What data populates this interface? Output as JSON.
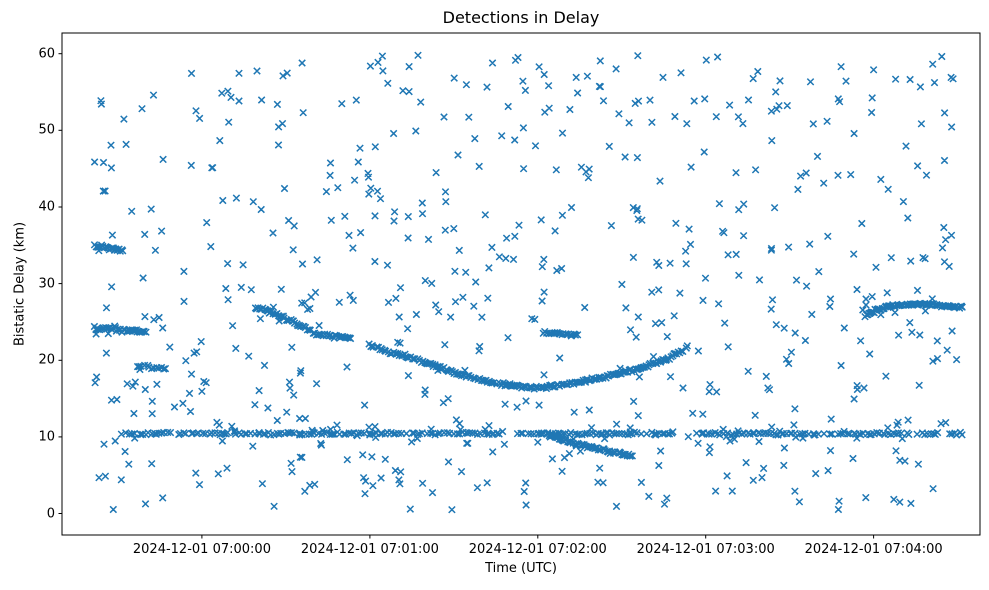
{
  "window": {
    "kind": "matplotlib-figure"
  },
  "chart_data": {
    "type": "scatter",
    "title": "Detections in Delay",
    "xlabel": "Time (UTC)",
    "ylabel": "Bistatic Delay (km)",
    "marker": "x",
    "marker_color": "#1f77b4",
    "marker_half_size_px": 3.2,
    "marker_stroke_px": 1.5,
    "x_axis": {
      "tick_seconds": [
        0,
        60,
        120,
        180,
        240
      ],
      "tick_labels": [
        "2024-12-01 07:00:00",
        "2024-12-01 07:01:00",
        "2024-12-01 07:02:00",
        "2024-12-01 07:03:00",
        "2024-12-01 07:04:00"
      ],
      "xlim_seconds": [
        -50,
        278
      ]
    },
    "y_axis": {
      "ticks": [
        0,
        10,
        20,
        30,
        40,
        50,
        60
      ],
      "tick_labels": [
        "0",
        "10",
        "20",
        "30",
        "40",
        "50",
        "60"
      ],
      "ylim": [
        -2.8,
        62.7
      ]
    },
    "grid": false,
    "legend": null,
    "tracks": [
      {
        "name": "track-34.5km",
        "polyline": [
          [
            -38.5,
            35.0
          ],
          [
            -28.0,
            34.3
          ]
        ],
        "step": 0.45,
        "jitter": 0.14,
        "gap_probability": 0.05,
        "gaps": []
      },
      {
        "name": "track-24km",
        "polyline": [
          [
            -38.5,
            24.2
          ],
          [
            -20.0,
            23.7
          ]
        ],
        "step": 0.5,
        "jitter": 0.15,
        "gap_probability": 0.05,
        "gaps": []
      },
      {
        "name": "track-19km",
        "polyline": [
          [
            -23.0,
            19.3
          ],
          [
            -13.0,
            18.8
          ]
        ],
        "step": 0.7,
        "jitter": 0.15,
        "gap_probability": 0.05,
        "gaps": []
      },
      {
        "name": "main-pass",
        "polyline": [
          [
            19,
            27.0
          ],
          [
            25,
            26.2
          ],
          [
            30,
            25.4
          ],
          [
            35,
            24.6
          ],
          [
            41,
            23.5
          ],
          [
            44,
            23.2
          ],
          [
            53,
            23.0
          ],
          [
            57,
            22.4
          ],
          [
            62,
            21.7
          ],
          [
            70,
            20.8
          ],
          [
            78,
            19.9
          ],
          [
            86,
            18.9
          ],
          [
            94,
            18.0
          ],
          [
            102,
            17.2
          ],
          [
            110,
            16.7
          ],
          [
            118,
            16.4
          ],
          [
            126,
            16.6
          ],
          [
            134,
            17.1
          ],
          [
            142,
            17.7
          ],
          [
            148,
            18.2
          ],
          [
            154,
            18.7
          ],
          [
            160,
            19.4
          ],
          [
            166,
            20.2
          ],
          [
            170,
            20.9
          ],
          [
            174,
            21.8
          ]
        ],
        "step": 0.55,
        "jitter": 0.13,
        "gap_probability": 0.04,
        "gaps": [
          [
            53.5,
            59.5
          ]
        ]
      },
      {
        "name": "segment-23.5km",
        "polyline": [
          [
            122,
            23.6
          ],
          [
            135,
            23.3
          ]
        ],
        "step": 0.6,
        "jitter": 0.12,
        "gap_probability": 0.05,
        "gaps": []
      },
      {
        "name": "descending-branch",
        "polyline": [
          [
            124,
            10.2
          ],
          [
            130,
            9.5
          ],
          [
            137,
            8.8
          ],
          [
            144,
            8.2
          ],
          [
            150,
            7.8
          ],
          [
            154,
            7.5
          ]
        ],
        "step": 0.45,
        "jitter": 0.12,
        "gap_probability": 0.05,
        "gaps": []
      },
      {
        "name": "track-27km-right",
        "polyline": [
          [
            237,
            25.8
          ],
          [
            241,
            26.5
          ],
          [
            245,
            27.0
          ],
          [
            250,
            27.3
          ],
          [
            256,
            27.3
          ],
          [
            262,
            27.2
          ],
          [
            267,
            27.1
          ],
          [
            272,
            26.9
          ]
        ],
        "step": 0.4,
        "jitter": 0.12,
        "gap_probability": 0.05,
        "gaps": []
      },
      {
        "name": "clutter-line-10.5km",
        "polyline": [
          [
            -28.5,
            10.45
          ],
          [
            272,
            10.4
          ]
        ],
        "step": 0.95,
        "jitter": 0.1,
        "gap_probability": 0.12,
        "gaps": [
          [
            107,
            113
          ],
          [
            168,
            176
          ],
          [
            263.5,
            266
          ]
        ]
      }
    ],
    "noise": {
      "count": 620,
      "t_range": [
        -39,
        273
      ],
      "d_range": [
        0.5,
        59.8
      ],
      "seed": 20241201
    },
    "band_halo": {
      "count": 40,
      "t_range": [
        -30,
        272
      ],
      "d_center": 10.4,
      "d_spread": 1.6,
      "seed": 777
    }
  }
}
